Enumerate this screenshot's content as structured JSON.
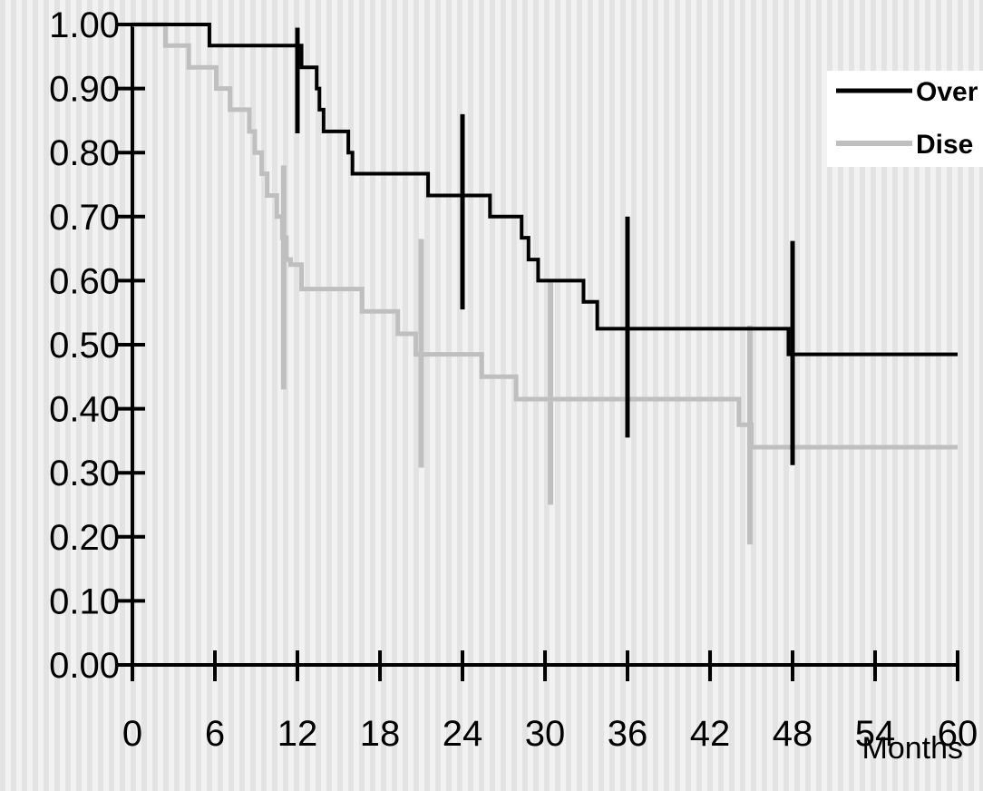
{
  "chart_data": {
    "type": "line",
    "title": "",
    "xlabel": "Months",
    "ylabel": "",
    "xlim": [
      0,
      60
    ],
    "ylim": [
      0,
      1
    ],
    "x_ticks": [
      0,
      6,
      12,
      18,
      24,
      30,
      36,
      42,
      48,
      54,
      60
    ],
    "x_tick_labels": [
      "0",
      "6",
      "12",
      "18",
      "24",
      "30",
      "36",
      "42",
      "48",
      "54",
      "60"
    ],
    "y_ticks": [
      0,
      0.1,
      0.2,
      0.3,
      0.4,
      0.5,
      0.6,
      0.7,
      0.8,
      0.9,
      1.0
    ],
    "y_tick_labels": [
      "0.00",
      "0.10",
      "0.20",
      "0.30",
      "0.40",
      "0.50",
      "0.60",
      "0.70",
      "0.80",
      "0.90",
      "1.00"
    ],
    "background": "vertical stripes",
    "legend_position": "top-right",
    "series": [
      {
        "name": "Over",
        "color": "#000000",
        "step": true,
        "points": [
          [
            0,
            1.0
          ],
          [
            5.6,
            0.967
          ],
          [
            11.8,
            0.967
          ],
          [
            12.3,
            0.933
          ],
          [
            13.4,
            0.9
          ],
          [
            13.6,
            0.867
          ],
          [
            13.9,
            0.833
          ],
          [
            15.7,
            0.8
          ],
          [
            16.0,
            0.767
          ],
          [
            21.5,
            0.733
          ],
          [
            26.0,
            0.7
          ],
          [
            28.3,
            0.667
          ],
          [
            28.8,
            0.633
          ],
          [
            29.5,
            0.6
          ],
          [
            32.8,
            0.567
          ],
          [
            33.8,
            0.525
          ],
          [
            47.7,
            0.485
          ],
          [
            60,
            0.485
          ]
        ],
        "confidence_bars": [
          [
            12.0,
            0.83,
            0.995
          ],
          [
            24.0,
            0.555,
            0.86
          ],
          [
            36.0,
            0.355,
            0.7
          ],
          [
            48.0,
            0.312,
            0.662
          ]
        ]
      },
      {
        "name": "Dise",
        "color": "#bfbfbf",
        "step": true,
        "points": [
          [
            0,
            1.0
          ],
          [
            2.4,
            0.967
          ],
          [
            4.1,
            0.933
          ],
          [
            6.1,
            0.9
          ],
          [
            7.1,
            0.867
          ],
          [
            8.5,
            0.833
          ],
          [
            8.9,
            0.8
          ],
          [
            9.4,
            0.767
          ],
          [
            9.8,
            0.733
          ],
          [
            10.5,
            0.7
          ],
          [
            10.9,
            0.667
          ],
          [
            11.2,
            0.633
          ],
          [
            11.5,
            0.625
          ],
          [
            12.3,
            0.587
          ],
          [
            16.7,
            0.552
          ],
          [
            19.3,
            0.517
          ],
          [
            20.6,
            0.485
          ],
          [
            25.4,
            0.45
          ],
          [
            27.9,
            0.415
          ],
          [
            44.1,
            0.375
          ],
          [
            45.0,
            0.34
          ],
          [
            60,
            0.34
          ]
        ],
        "confidence_bars": [
          [
            11.0,
            0.43,
            0.78
          ],
          [
            21.0,
            0.308,
            0.665
          ],
          [
            30.4,
            0.25,
            0.6
          ],
          [
            44.9,
            0.188,
            0.53
          ]
        ]
      }
    ]
  }
}
